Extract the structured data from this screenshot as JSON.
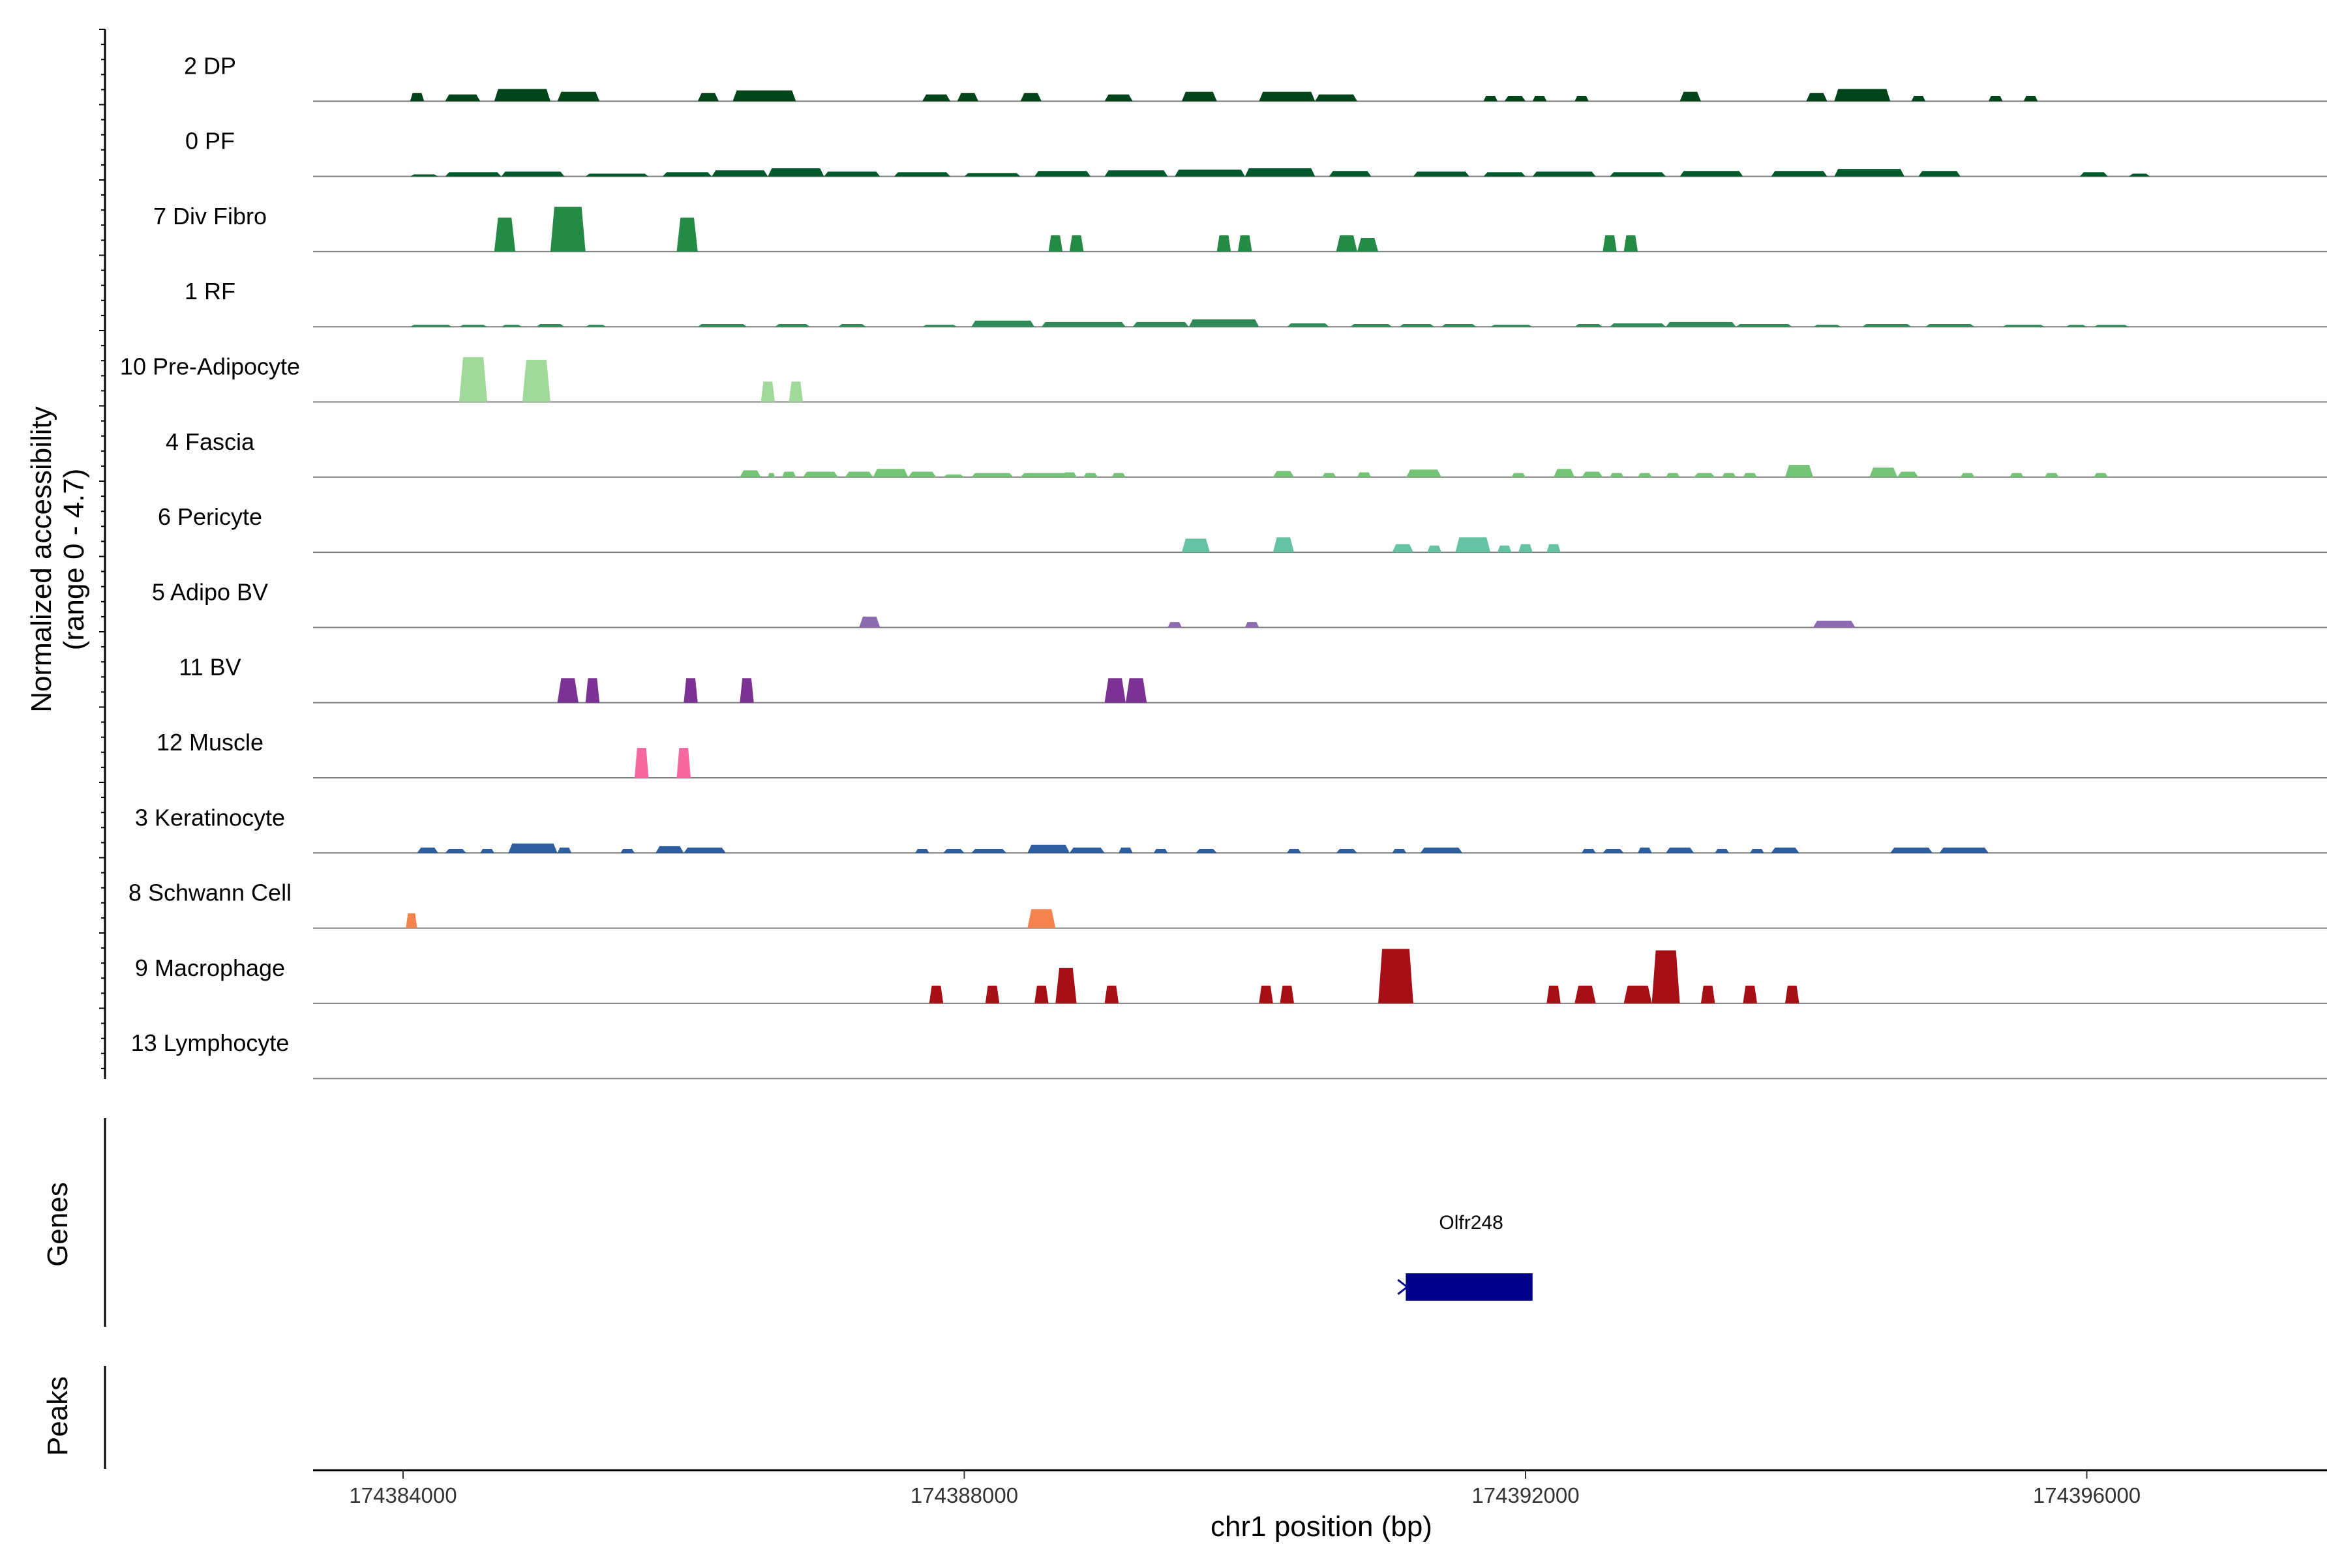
{
  "chart_data": {
    "type": "area",
    "panels": {
      "accessibility": {
        "ylabel_line1": "Normalized accessibility",
        "ylabel_line2": "(range 0 - 4.7)",
        "y_range": [
          0,
          4.7
        ]
      },
      "genes": {
        "ylabel": "Genes"
      },
      "peaks": {
        "ylabel": "Peaks"
      }
    },
    "xlabel": "chr1 position (bp)",
    "xlim": [
      174382800,
      174397100
    ],
    "x_ticks": [
      {
        "value": 174384000,
        "label": "174384000"
      },
      {
        "value": 174388000,
        "label": "174388000"
      },
      {
        "value": 174392000,
        "label": "174392000"
      },
      {
        "value": 174396000,
        "label": "174396000"
      }
    ],
    "tracks": [
      {
        "name": "2 DP",
        "color": "#00441b",
        "peaks": [
          [
            174384050,
            174384150,
            0.6
          ],
          [
            174384300,
            174384550,
            0.5
          ],
          [
            174384650,
            174385050,
            0.9
          ],
          [
            174385100,
            174385400,
            0.7
          ],
          [
            174386100,
            174386250,
            0.6
          ],
          [
            174386350,
            174386800,
            0.8
          ],
          [
            174387700,
            174387900,
            0.5
          ],
          [
            174387950,
            174388100,
            0.6
          ],
          [
            174388400,
            174388550,
            0.6
          ],
          [
            174389000,
            174389200,
            0.5
          ],
          [
            174389550,
            174389800,
            0.7
          ],
          [
            174390100,
            174390500,
            0.7
          ],
          [
            174390500,
            174390800,
            0.5
          ],
          [
            174391700,
            174391800,
            0.4
          ],
          [
            174391850,
            174392000,
            0.4
          ],
          [
            174392050,
            174392150,
            0.4
          ],
          [
            174392350,
            174392450,
            0.4
          ],
          [
            174393100,
            174393250,
            0.7
          ],
          [
            174394000,
            174394150,
            0.6
          ],
          [
            174394200,
            174394600,
            0.9
          ],
          [
            174394750,
            174394850,
            0.4
          ],
          [
            174395300,
            174395400,
            0.4
          ],
          [
            174395550,
            174395650,
            0.4
          ]
        ]
      },
      {
        "name": "0 PF",
        "color": "#005a2b",
        "peaks": [
          [
            174384050,
            174384250,
            0.15
          ],
          [
            174384300,
            174384700,
            0.3
          ],
          [
            174384700,
            174385150,
            0.35
          ],
          [
            174385300,
            174385750,
            0.2
          ],
          [
            174385850,
            174386200,
            0.3
          ],
          [
            174386200,
            174386600,
            0.45
          ],
          [
            174386600,
            174387000,
            0.6
          ],
          [
            174387000,
            174387400,
            0.35
          ],
          [
            174387500,
            174387900,
            0.3
          ],
          [
            174388000,
            174388400,
            0.25
          ],
          [
            174388500,
            174388900,
            0.4
          ],
          [
            174389000,
            174389450,
            0.45
          ],
          [
            174389500,
            174390000,
            0.5
          ],
          [
            174390000,
            174390500,
            0.6
          ],
          [
            174390600,
            174390900,
            0.4
          ],
          [
            174391200,
            174391600,
            0.35
          ],
          [
            174391700,
            174392000,
            0.3
          ],
          [
            174392050,
            174392500,
            0.35
          ],
          [
            174392600,
            174393000,
            0.3
          ],
          [
            174393100,
            174393550,
            0.4
          ],
          [
            174393750,
            174394150,
            0.4
          ],
          [
            174394200,
            174394700,
            0.55
          ],
          [
            174394800,
            174395100,
            0.4
          ],
          [
            174395950,
            174396150,
            0.3
          ],
          [
            174396300,
            174396450,
            0.2
          ]
        ]
      },
      {
        "name": "7 Div Fibro",
        "color": "#238b45",
        "peaks": [
          [
            174384650,
            174384800,
            2.5
          ],
          [
            174385050,
            174385300,
            3.3
          ],
          [
            174385950,
            174386100,
            2.5
          ],
          [
            174388600,
            174388700,
            1.2
          ],
          [
            174388750,
            174388850,
            1.2
          ],
          [
            174389800,
            174389900,
            1.2
          ],
          [
            174389950,
            174390050,
            1.2
          ],
          [
            174390650,
            174390800,
            1.2
          ],
          [
            174390800,
            174390950,
            1.0
          ],
          [
            174392550,
            174392650,
            1.2
          ],
          [
            174392700,
            174392800,
            1.2
          ]
        ]
      },
      {
        "name": "1 RF",
        "color": "#2e8b57",
        "peaks": [
          [
            174384050,
            174384350,
            0.15
          ],
          [
            174384400,
            174384600,
            0.15
          ],
          [
            174384700,
            174384850,
            0.15
          ],
          [
            174384950,
            174385150,
            0.2
          ],
          [
            174385300,
            174385450,
            0.15
          ],
          [
            174386100,
            174386450,
            0.2
          ],
          [
            174386650,
            174386900,
            0.2
          ],
          [
            174387100,
            174387300,
            0.2
          ],
          [
            174387700,
            174387950,
            0.15
          ],
          [
            174388050,
            174388500,
            0.45
          ],
          [
            174388550,
            174389150,
            0.35
          ],
          [
            174389200,
            174389600,
            0.35
          ],
          [
            174389600,
            174390100,
            0.55
          ],
          [
            174390300,
            174390600,
            0.25
          ],
          [
            174390750,
            174391050,
            0.2
          ],
          [
            174391100,
            174391350,
            0.2
          ],
          [
            174391400,
            174391650,
            0.2
          ],
          [
            174391750,
            174392050,
            0.15
          ],
          [
            174392350,
            174392550,
            0.2
          ],
          [
            174392600,
            174393000,
            0.25
          ],
          [
            174393000,
            174393500,
            0.35
          ],
          [
            174393500,
            174393900,
            0.2
          ],
          [
            174394050,
            174394250,
            0.15
          ],
          [
            174394400,
            174394750,
            0.2
          ],
          [
            174394850,
            174395200,
            0.2
          ],
          [
            174395400,
            174395700,
            0.15
          ],
          [
            174395850,
            174396000,
            0.1
          ],
          [
            174396050,
            174396300,
            0.1
          ]
        ]
      },
      {
        "name": "10 Pre-Adipocyte",
        "color": "#a1d99b",
        "peaks": [
          [
            174384400,
            174384600,
            3.3
          ],
          [
            174384850,
            174385050,
            3.1
          ],
          [
            174386550,
            174386650,
            1.5
          ],
          [
            174386750,
            174386850,
            1.5
          ]
        ]
      },
      {
        "name": "4 Fascia",
        "color": "#74c476",
        "peaks": [
          [
            174386400,
            174386550,
            0.5
          ],
          [
            174386600,
            174386650,
            0.3
          ],
          [
            174386700,
            174386800,
            0.4
          ],
          [
            174386850,
            174387100,
            0.4
          ],
          [
            174387150,
            174387350,
            0.4
          ],
          [
            174387350,
            174387600,
            0.6
          ],
          [
            174387600,
            174387800,
            0.4
          ],
          [
            174387850,
            174388000,
            0.2
          ],
          [
            174388050,
            174388350,
            0.3
          ],
          [
            174388400,
            174388750,
            0.3
          ],
          [
            174388700,
            174388800,
            0.35
          ],
          [
            174388850,
            174388950,
            0.3
          ],
          [
            174389050,
            174389150,
            0.3
          ],
          [
            174390200,
            174390350,
            0.45
          ],
          [
            174390550,
            174390650,
            0.3
          ],
          [
            174390800,
            174390900,
            0.35
          ],
          [
            174391150,
            174391400,
            0.55
          ],
          [
            174391900,
            174392000,
            0.3
          ],
          [
            174392200,
            174392350,
            0.6
          ],
          [
            174392400,
            174392550,
            0.4
          ],
          [
            174392600,
            174392700,
            0.3
          ],
          [
            174392800,
            174392900,
            0.3
          ],
          [
            174393000,
            174393100,
            0.3
          ],
          [
            174393200,
            174393350,
            0.3
          ],
          [
            174393400,
            174393500,
            0.3
          ],
          [
            174393550,
            174393650,
            0.3
          ],
          [
            174393850,
            174394050,
            0.9
          ],
          [
            174394450,
            174394650,
            0.7
          ],
          [
            174394650,
            174394800,
            0.4
          ],
          [
            174395100,
            174395200,
            0.3
          ],
          [
            174395450,
            174395550,
            0.3
          ],
          [
            174395700,
            174395800,
            0.3
          ],
          [
            174396050,
            174396150,
            0.3
          ]
        ]
      },
      {
        "name": "6 Pericyte",
        "color": "#66c2a4",
        "peaks": [
          [
            174389550,
            174389750,
            1.0
          ],
          [
            174390200,
            174390350,
            1.1
          ],
          [
            174391050,
            174391200,
            0.6
          ],
          [
            174391300,
            174391400,
            0.5
          ],
          [
            174391500,
            174391750,
            1.1
          ],
          [
            174391800,
            174391900,
            0.5
          ],
          [
            174391950,
            174392050,
            0.6
          ],
          [
            174392150,
            174392250,
            0.6
          ]
        ]
      },
      {
        "name": "5 Adipo BV",
        "color": "#8c6bb1",
        "peaks": [
          [
            174387250,
            174387400,
            0.8
          ],
          [
            174389450,
            174389550,
            0.4
          ],
          [
            174390000,
            174390100,
            0.4
          ],
          [
            174394050,
            174394350,
            0.5
          ]
        ]
      },
      {
        "name": "11 BV",
        "color": "#7b3294",
        "peaks": [
          [
            174385100,
            174385250,
            1.8
          ],
          [
            174385300,
            174385400,
            1.8
          ],
          [
            174386000,
            174386100,
            1.8
          ],
          [
            174386400,
            174386500,
            1.8
          ],
          [
            174389000,
            174389150,
            1.8
          ],
          [
            174389150,
            174389300,
            1.8
          ]
        ]
      },
      {
        "name": "12 Muscle",
        "color": "#f768a1",
        "peaks": [
          [
            174385650,
            174385750,
            2.2
          ],
          [
            174385950,
            174386050,
            2.2
          ]
        ]
      },
      {
        "name": "3 Keratinocyte",
        "color": "#2c5ea0",
        "peaks": [
          [
            174384100,
            174384250,
            0.4
          ],
          [
            174384300,
            174384450,
            0.3
          ],
          [
            174384550,
            174384650,
            0.3
          ],
          [
            174384750,
            174385100,
            0.7
          ],
          [
            174385100,
            174385200,
            0.4
          ],
          [
            174385550,
            174385650,
            0.3
          ],
          [
            174385800,
            174386000,
            0.5
          ],
          [
            174386000,
            174386300,
            0.4
          ],
          [
            174387650,
            174387750,
            0.3
          ],
          [
            174387850,
            174388000,
            0.3
          ],
          [
            174388050,
            174388300,
            0.3
          ],
          [
            174388450,
            174388750,
            0.6
          ],
          [
            174388750,
            174389000,
            0.4
          ],
          [
            174389100,
            174389200,
            0.4
          ],
          [
            174389350,
            174389450,
            0.3
          ],
          [
            174389650,
            174389800,
            0.3
          ],
          [
            174390300,
            174390400,
            0.3
          ],
          [
            174390650,
            174390800,
            0.3
          ],
          [
            174391050,
            174391150,
            0.3
          ],
          [
            174391250,
            174391550,
            0.4
          ],
          [
            174392400,
            174392500,
            0.3
          ],
          [
            174392550,
            174392700,
            0.3
          ],
          [
            174392800,
            174392900,
            0.4
          ],
          [
            174393000,
            174393200,
            0.4
          ],
          [
            174393350,
            174393450,
            0.3
          ],
          [
            174393600,
            174393700,
            0.3
          ],
          [
            174393750,
            174393950,
            0.4
          ],
          [
            174394600,
            174394900,
            0.4
          ],
          [
            174394950,
            174395300,
            0.4
          ]
        ]
      },
      {
        "name": "8 Schwann Cell",
        "color": "#f4834e",
        "peaks": [
          [
            174384020,
            174384100,
            1.1
          ],
          [
            174388450,
            174388650,
            1.4
          ]
        ]
      },
      {
        "name": "9 Macrophage",
        "color": "#a50f15",
        "peaks": [
          [
            174387750,
            174387850,
            1.3
          ],
          [
            174388150,
            174388250,
            1.3
          ],
          [
            174388500,
            174388600,
            1.3
          ],
          [
            174388650,
            174388800,
            2.6
          ],
          [
            174389000,
            174389100,
            1.3
          ],
          [
            174390100,
            174390200,
            1.3
          ],
          [
            174390250,
            174390350,
            1.3
          ],
          [
            174390950,
            174391200,
            4.0
          ],
          [
            174392150,
            174392250,
            1.3
          ],
          [
            174392350,
            174392500,
            1.3
          ],
          [
            174392700,
            174392900,
            1.3
          ],
          [
            174392900,
            174393100,
            3.9
          ],
          [
            174393250,
            174393350,
            1.3
          ],
          [
            174393550,
            174393650,
            1.3
          ],
          [
            174393850,
            174393950,
            1.3
          ]
        ]
      },
      {
        "name": "13 Lymphocyte",
        "color": "#555555",
        "peaks": []
      }
    ],
    "genes": [
      {
        "name": "Olfr248",
        "start": 174391100,
        "end": 174392050,
        "strand": "-",
        "color": "#00008b"
      }
    ],
    "peak_regions": []
  }
}
